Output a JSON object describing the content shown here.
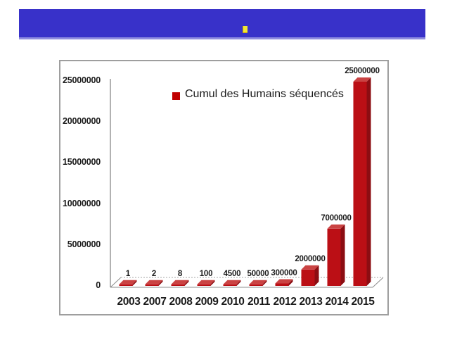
{
  "banner": {
    "background": "#3831c9",
    "edge_color": "#8f8cdf",
    "bullet_color": "#f3e733",
    "bullet_outline": "#c9a40a"
  },
  "chart_data": {
    "type": "bar",
    "projection": "3d",
    "title": "",
    "xlabel": "",
    "ylabel": "",
    "legend": {
      "label": "Cumul des Humains séquencés",
      "swatch_color": "#c00000",
      "position": "top-center-inside"
    },
    "categories": [
      "2003",
      "2007",
      "2008",
      "2009",
      "2010",
      "2011",
      "2012",
      "2013",
      "2014",
      "2015"
    ],
    "series": [
      {
        "name": "Cumul des Humains séquencés",
        "values": [
          1,
          2,
          8,
          100,
          4500,
          50000,
          300000,
          2000000,
          7000000,
          25000000
        ],
        "data_labels": [
          "1",
          "2",
          "8",
          "100",
          "4500",
          "50000",
          "300000",
          "2000000",
          "7000000",
          "25000000"
        ]
      }
    ],
    "ylim": [
      0,
      25000000
    ],
    "y_ticks": [
      "25000000",
      "20000000",
      "15000000",
      "10000000",
      "5000000",
      "0"
    ],
    "grid": false,
    "colors": {
      "bar_front": "#bb0f15",
      "bar_top": "#ca4343",
      "bar_side": "#8c0d12",
      "axis": "#7f7f7f",
      "floor_outline": "#8c8c8c",
      "floor_back_dotted": "#a6a6a6",
      "text": "#1a1a1a"
    }
  }
}
